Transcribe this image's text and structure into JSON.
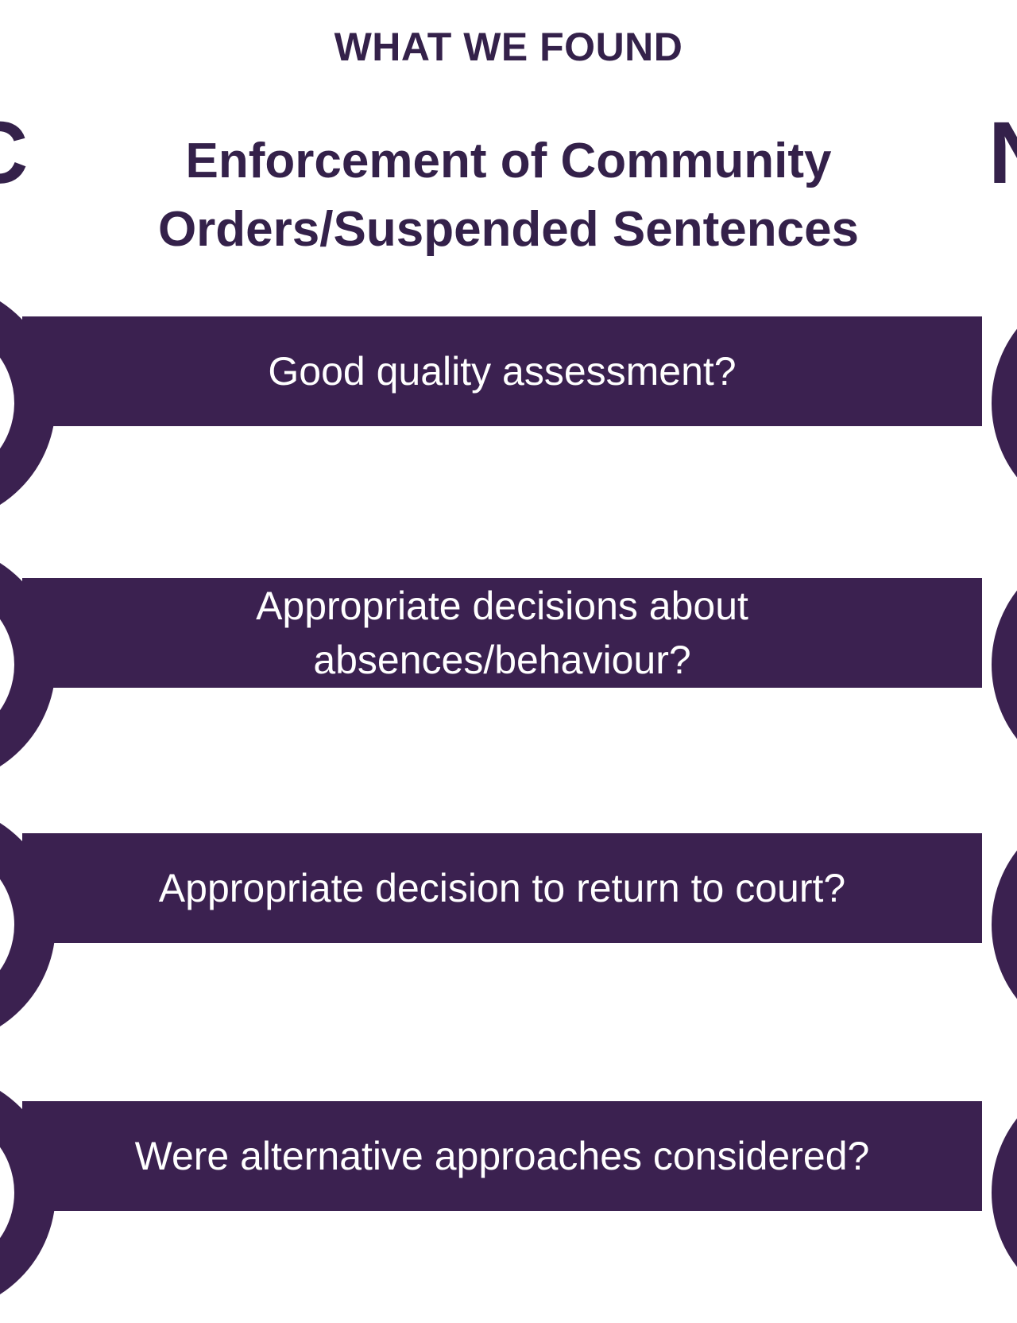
{
  "header": {
    "kicker": "WHAT WE FOUND",
    "title_line1": "Enforcement of Community",
    "title_line2": "Orders/Suspended Sentences"
  },
  "side_letters": {
    "left": "C",
    "right": "N"
  },
  "rows": [
    {
      "label": "Good quality assessment?"
    },
    {
      "label_line1": "Appropriate decisions about",
      "label_line2": "absences/behaviour?"
    },
    {
      "label": "Appropriate decision to return to court?"
    },
    {
      "label": "Were alternative approaches considered?"
    }
  ],
  "colors": {
    "band": "#3b2150",
    "heading": "#34214a",
    "band_text": "#ffffff"
  }
}
